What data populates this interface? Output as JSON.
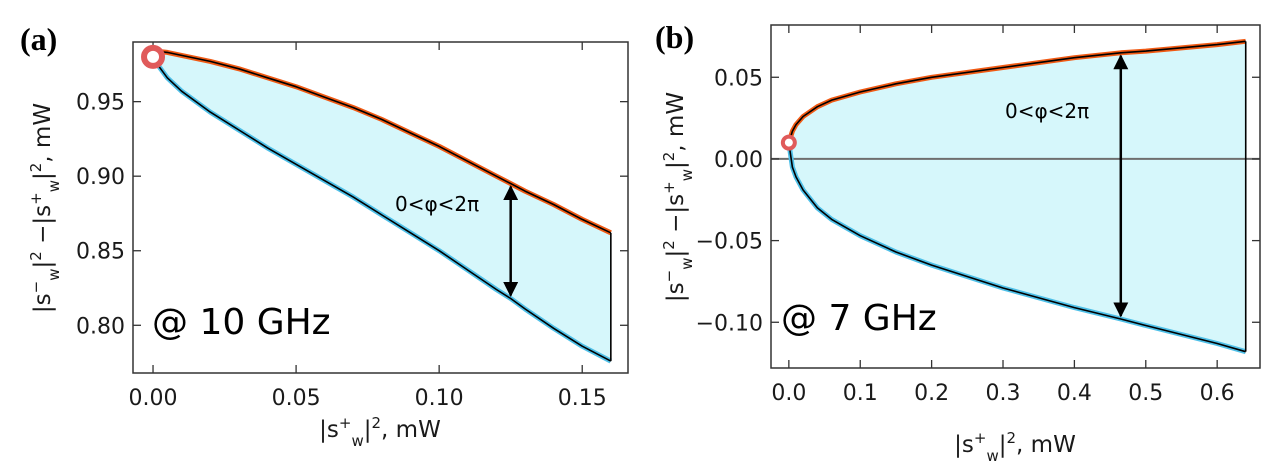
{
  "chart_data": [
    {
      "panel_label": "(a)",
      "type": "area",
      "xlabel": "|s_w^+|², mW",
      "ylabel": "|s_w^-|² −|s_w^+|², mW",
      "xlim": [
        -0.007,
        0.166
      ],
      "ylim": [
        0.768,
        0.99
      ],
      "xticks": [
        0.0,
        0.05,
        0.1,
        0.15
      ],
      "xtick_labels": [
        "0.00",
        "0.05",
        "0.10",
        "0.15"
      ],
      "yticks": [
        0.8,
        0.85,
        0.9,
        0.95
      ],
      "ytick_labels": [
        "0.80",
        "0.85",
        "0.90",
        "0.95"
      ],
      "annotation": "0<φ<2π",
      "freq_label": "@ 10 GHz",
      "arrow_x": 0.125,
      "marker": {
        "x": 0.0,
        "y": 0.98
      },
      "series": [
        {
          "role": "upper",
          "color": "#f05a14",
          "x": [
            0.0,
            0.005,
            0.01,
            0.02,
            0.03,
            0.04,
            0.05,
            0.06,
            0.07,
            0.08,
            0.09,
            0.1,
            0.11,
            0.12,
            0.125,
            0.13,
            0.14,
            0.15,
            0.16
          ],
          "y": [
            0.984,
            0.983,
            0.981,
            0.977,
            0.972,
            0.966,
            0.96,
            0.953,
            0.946,
            0.938,
            0.929,
            0.92,
            0.91,
            0.9,
            0.895,
            0.89,
            0.881,
            0.871,
            0.862
          ]
        },
        {
          "role": "lower",
          "color": "#4fc0e8",
          "x": [
            0.0,
            0.005,
            0.01,
            0.02,
            0.03,
            0.04,
            0.05,
            0.06,
            0.07,
            0.08,
            0.09,
            0.1,
            0.11,
            0.12,
            0.125,
            0.13,
            0.14,
            0.15,
            0.16
          ],
          "y": [
            0.979,
            0.966,
            0.957,
            0.943,
            0.931,
            0.919,
            0.908,
            0.897,
            0.886,
            0.874,
            0.862,
            0.85,
            0.837,
            0.824,
            0.818,
            0.811,
            0.798,
            0.786,
            0.776
          ]
        }
      ]
    },
    {
      "panel_label": "(b)",
      "type": "area",
      "xlabel": "|s_w^+|², mW",
      "ylabel": "|s_w^-|² −|s_w^+|², mW",
      "xlim": [
        -0.025,
        0.66
      ],
      "ylim": [
        -0.128,
        0.082
      ],
      "xticks": [
        0.0,
        0.1,
        0.2,
        0.3,
        0.4,
        0.5,
        0.6
      ],
      "xtick_labels": [
        "0.0",
        "0.1",
        "0.2",
        "0.3",
        "0.4",
        "0.5",
        "0.6"
      ],
      "yticks": [
        -0.1,
        -0.05,
        0.0,
        0.05
      ],
      "ytick_labels": [
        "−0.10",
        "−0.05",
        "0.00",
        "0.05"
      ],
      "zero_line": true,
      "annotation": "0<φ<2π",
      "freq_label": "@ 7 GHz",
      "arrow_x": 0.465,
      "marker": {
        "x": 0.0,
        "y": 0.01
      },
      "series": [
        {
          "role": "upper",
          "color": "#f05a14",
          "x": [
            0.0,
            0.005,
            0.01,
            0.02,
            0.04,
            0.06,
            0.1,
            0.15,
            0.2,
            0.3,
            0.4,
            0.465,
            0.5,
            0.6,
            0.64
          ],
          "y": [
            0.01,
            0.017,
            0.021,
            0.026,
            0.032,
            0.036,
            0.041,
            0.046,
            0.05,
            0.056,
            0.062,
            0.065,
            0.066,
            0.07,
            0.072
          ]
        },
        {
          "role": "lower",
          "color": "#4fc0e8",
          "x": [
            0.0,
            0.005,
            0.01,
            0.02,
            0.04,
            0.06,
            0.1,
            0.15,
            0.2,
            0.3,
            0.4,
            0.465,
            0.5,
            0.6,
            0.64
          ],
          "y": [
            0.01,
            -0.005,
            -0.011,
            -0.019,
            -0.03,
            -0.037,
            -0.047,
            -0.057,
            -0.065,
            -0.079,
            -0.091,
            -0.098,
            -0.102,
            -0.113,
            -0.118
          ]
        }
      ]
    }
  ]
}
